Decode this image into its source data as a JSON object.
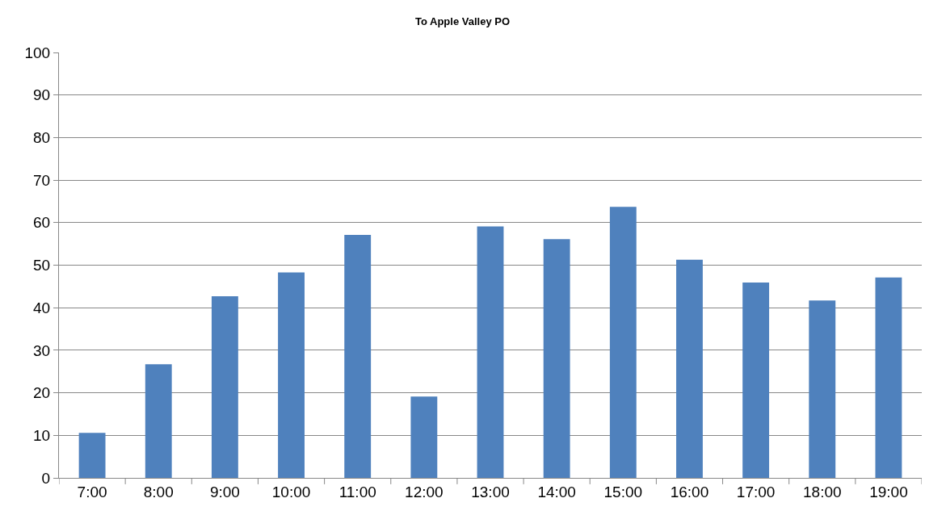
{
  "chart_data": {
    "type": "bar",
    "title": "To Apple Valley PO",
    "categories": [
      "7:00",
      "8:00",
      "9:00",
      "10:00",
      "11:00",
      "12:00",
      "13:00",
      "14:00",
      "15:00",
      "16:00",
      "17:00",
      "18:00",
      "19:00"
    ],
    "values": [
      10.6,
      26.7,
      42.7,
      48.3,
      57.1,
      19.1,
      59.1,
      56.1,
      63.7,
      51.3,
      45.9,
      41.7,
      47.1
    ],
    "color": "#4f81bd",
    "ylim": [
      0,
      100
    ],
    "yticks": [
      0,
      10,
      20,
      30,
      40,
      50,
      60,
      70,
      80,
      90,
      100
    ],
    "grid": "y",
    "legend": false
  }
}
